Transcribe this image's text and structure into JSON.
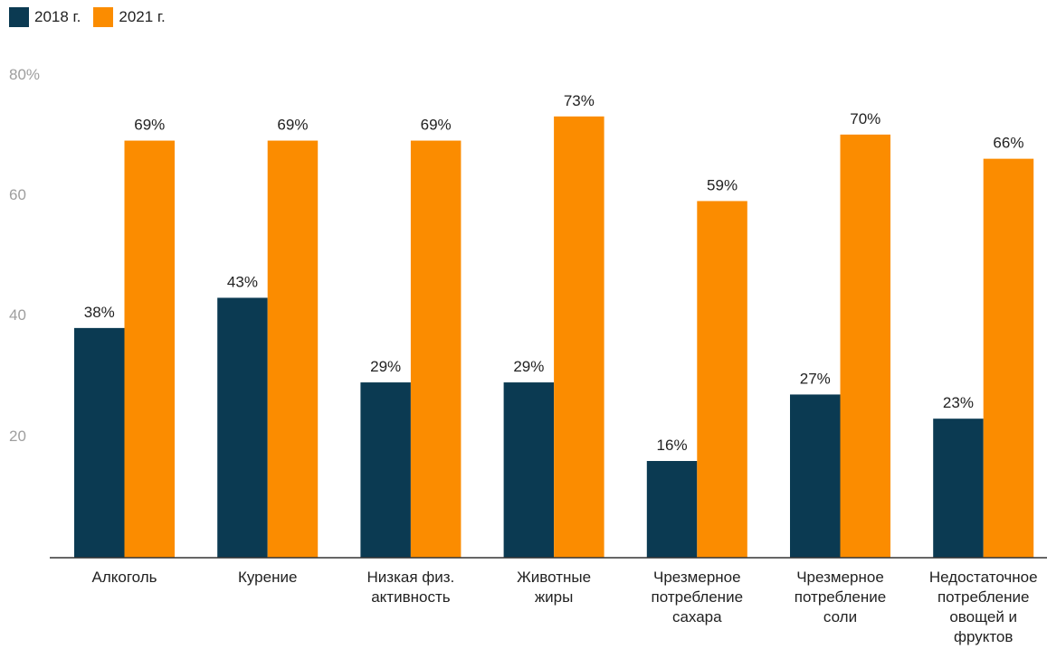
{
  "chart_data": {
    "type": "bar",
    "categories": [
      [
        "Алкоголь"
      ],
      [
        "Курение"
      ],
      [
        "Низкая физ.",
        "активность"
      ],
      [
        "Животные",
        "жиры"
      ],
      [
        "Чрезмерное",
        "потребление",
        "сахара"
      ],
      [
        "Чрезмерное",
        "потребление",
        "соли"
      ],
      [
        "Недостаточное",
        "потребление",
        "овощей и",
        "фруктов"
      ]
    ],
    "series": [
      {
        "name": "2018 г.",
        "color": "#0b3a52",
        "values": [
          38,
          43,
          29,
          29,
          16,
          27,
          23
        ]
      },
      {
        "name": "2021 г.",
        "color": "#fb8c00",
        "values": [
          69,
          69,
          69,
          73,
          59,
          70,
          66
        ]
      }
    ],
    "data_label_suffix": "%",
    "y_ticks": [
      "20",
      "40",
      "60",
      "80%"
    ],
    "ylim": [
      0,
      80
    ],
    "grid": false,
    "legend_position": "top-left",
    "title": "",
    "xlabel": "",
    "ylabel": ""
  }
}
